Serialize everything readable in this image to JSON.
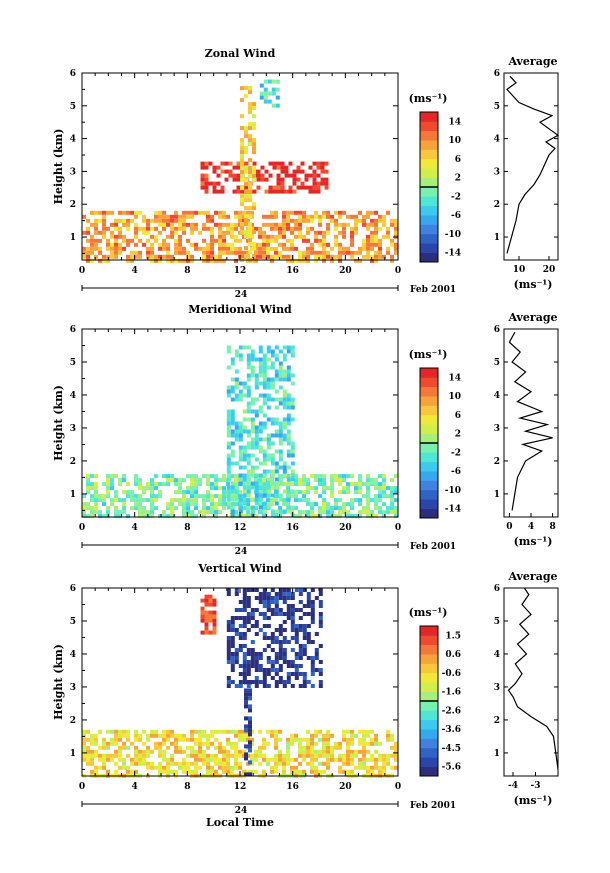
{
  "colorbar_colors": [
    "#2b2f7e",
    "#2a46a8",
    "#2f63c8",
    "#3f82e0",
    "#36a8ee",
    "#3ccbee",
    "#4fe6d6",
    "#77f0b0",
    "#a6ef7e",
    "#d2ee4a",
    "#f2e83a",
    "#f8c83a",
    "#f7a23a",
    "#f4783a",
    "#ee4a30",
    "#e02828"
  ],
  "chart_data": [
    {
      "type": "heatmap",
      "title": "Zonal Wind",
      "ylabel": "Height (km)",
      "xlabel": "",
      "date_label": "Feb 2001",
      "day_label": "24",
      "x_ticks": [
        "0",
        "4",
        "8",
        "12",
        "16",
        "20",
        "0"
      ],
      "y_ticks": [
        "1",
        "2",
        "3",
        "4",
        "5",
        "6"
      ],
      "xlim": [
        0,
        24
      ],
      "ylim": [
        0.3,
        6
      ],
      "colorbar": {
        "unit": "(ms⁻¹)",
        "ticks": [
          "14",
          "10",
          "6",
          "2",
          "-2",
          "-6",
          "-10",
          "-14"
        ],
        "range": [
          -16,
          16
        ]
      },
      "series": [
        {
          "region": "boundary layer",
          "x_range": [
            0,
            24
          ],
          "y_range": [
            0.3,
            1.8
          ],
          "approx_value": 9
        },
        {
          "region": "upper layer",
          "x_range": [
            9,
            18.5
          ],
          "y_range": [
            2.4,
            3.3
          ],
          "approx_value": 15
        },
        {
          "region": "convective column",
          "x_range": [
            12,
            13
          ],
          "y_range": [
            0.3,
            5.6
          ],
          "approx_value": 6
        },
        {
          "region": "upper cyan patch",
          "x_range": [
            13.5,
            14.8
          ],
          "y_range": [
            5.0,
            5.8
          ],
          "approx_value": -3
        }
      ],
      "profile": {
        "title": "Average",
        "xlabel": "(ms⁻¹)",
        "x_ticks": [
          "10",
          "20"
        ],
        "y_ticks": [
          "1",
          "2",
          "3",
          "4",
          "5",
          "6"
        ],
        "xlim": [
          5,
          23
        ],
        "height": [
          0.5,
          1.0,
          1.5,
          2.0,
          2.3,
          2.6,
          2.9,
          3.2,
          3.5,
          3.7,
          3.9,
          4.1,
          4.3,
          4.5,
          4.7,
          4.9,
          5.1,
          5.3,
          5.5,
          5.7,
          5.9
        ],
        "value": [
          6,
          7.5,
          9,
          10,
          12,
          15,
          17,
          18.5,
          20,
          22,
          19,
          23,
          20,
          17,
          21,
          15,
          10,
          8,
          6,
          9,
          7
        ]
      }
    },
    {
      "type": "heatmap",
      "title": "Meridional Wind",
      "ylabel": "Height (km)",
      "xlabel": "",
      "date_label": "Feb 2001",
      "day_label": "24",
      "x_ticks": [
        "0",
        "4",
        "8",
        "12",
        "16",
        "20",
        "0"
      ],
      "y_ticks": [
        "1",
        "2",
        "3",
        "4",
        "5",
        "6"
      ],
      "xlim": [
        0,
        24
      ],
      "ylim": [
        0.3,
        6
      ],
      "colorbar": {
        "unit": "(ms⁻¹)",
        "ticks": [
          "14",
          "10",
          "6",
          "2",
          "-2",
          "-6",
          "-10",
          "-14"
        ],
        "range": [
          -16,
          16
        ]
      },
      "series": [
        {
          "region": "boundary layer",
          "x_range": [
            0,
            24
          ],
          "y_range": [
            0.3,
            1.6
          ],
          "approx_value": -1
        },
        {
          "region": "convective column",
          "x_range": [
            11,
            16
          ],
          "y_range": [
            0.3,
            5.5
          ],
          "approx_value": -3
        }
      ],
      "profile": {
        "title": "Average",
        "xlabel": "(ms⁻¹)",
        "x_ticks": [
          "0",
          "4",
          "8"
        ],
        "y_ticks": [
          "1",
          "2",
          "3",
          "4",
          "5",
          "6"
        ],
        "xlim": [
          -1,
          9
        ],
        "height": [
          0.5,
          1.0,
          1.5,
          2.0,
          2.3,
          2.5,
          2.7,
          2.9,
          3.1,
          3.3,
          3.5,
          3.8,
          4.1,
          4.4,
          4.7,
          5.0,
          5.3,
          5.6,
          5.9
        ],
        "value": [
          0.5,
          1,
          1.5,
          3,
          6,
          2.5,
          8,
          3,
          7,
          2,
          6,
          1.5,
          4,
          1,
          3,
          0.5,
          2,
          0,
          1
        ]
      }
    },
    {
      "type": "heatmap",
      "title": "Vertical Wind",
      "ylabel": "Height (km)",
      "xlabel": "Local Time",
      "date_label": "Feb 2001",
      "day_label": "24",
      "x_ticks": [
        "0",
        "4",
        "8",
        "12",
        "16",
        "20",
        "0"
      ],
      "y_ticks": [
        "1",
        "2",
        "3",
        "4",
        "5",
        "6"
      ],
      "xlim": [
        0,
        24
      ],
      "ylim": [
        0.3,
        6
      ],
      "colorbar": {
        "unit": "(ms⁻¹)",
        "ticks": [
          "1.5",
          "0.6",
          "-0.6",
          "-1.6",
          "-2.6",
          "-3.6",
          "-4.5",
          "-5.6"
        ],
        "range": [
          -6,
          2
        ]
      },
      "series": [
        {
          "region": "boundary layer",
          "x_range": [
            0,
            24
          ],
          "y_range": [
            0.3,
            1.7
          ],
          "approx_value": -0.6
        },
        {
          "region": "downdraft column",
          "x_range": [
            12.3,
            12.9
          ],
          "y_range": [
            0.3,
            3.2
          ],
          "approx_value": -5.6
        },
        {
          "region": "upper updraft",
          "x_range": [
            9,
            10
          ],
          "y_range": [
            4.6,
            5.8
          ],
          "approx_value": 1.5
        },
        {
          "region": "upper downdraft",
          "x_range": [
            11,
            18
          ],
          "y_range": [
            3.0,
            6.0
          ],
          "approx_value": -5.6
        }
      ],
      "profile": {
        "title": "Average",
        "xlabel": "(ms⁻¹)",
        "x_ticks": [
          "-4",
          "-3"
        ],
        "y_ticks": [
          "1",
          "2",
          "3",
          "4",
          "5",
          "6"
        ],
        "xlim": [
          -4.4,
          -2.0
        ],
        "height": [
          0.5,
          1.0,
          1.5,
          1.8,
          2.1,
          2.4,
          2.7,
          2.9,
          3.1,
          3.4,
          3.7,
          4.0,
          4.3,
          4.6,
          4.9,
          5.2,
          5.5,
          5.8,
          6.0
        ],
        "value": [
          -2.0,
          -2.1,
          -2.2,
          -2.5,
          -3.2,
          -3.8,
          -4.0,
          -4.2,
          -3.9,
          -3.6,
          -3.9,
          -3.4,
          -3.8,
          -3.3,
          -3.7,
          -3.2,
          -3.6,
          -3.3,
          -3.5
        ]
      }
    }
  ]
}
